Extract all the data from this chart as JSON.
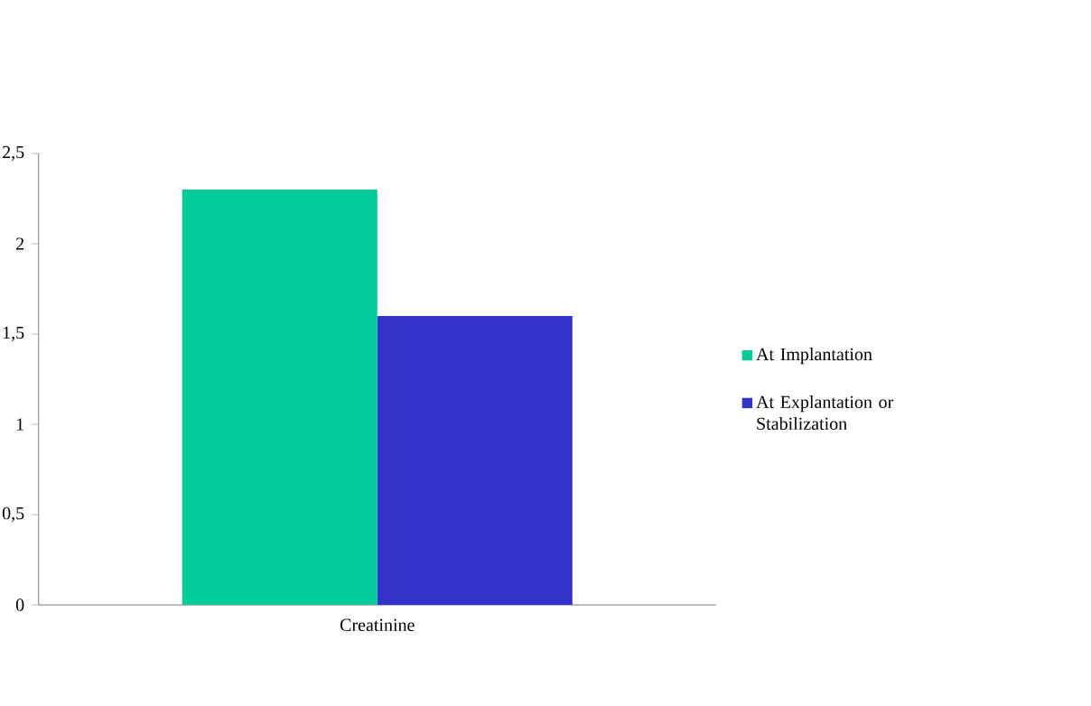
{
  "chart_data": {
    "type": "bar",
    "categories": [
      "Creatinine"
    ],
    "series": [
      {
        "name": "At Implantation",
        "color": "#00cc99",
        "values": [
          2.3
        ]
      },
      {
        "name": "At Explantation or Stabilization",
        "color": "#3333cc",
        "values": [
          1.6
        ]
      }
    ],
    "ylim": [
      0,
      2.5
    ],
    "yticks": [
      0,
      {
        "value": 0.5,
        "label": "0,5"
      },
      1,
      {
        "value": 1.5,
        "label": "1,5"
      },
      2,
      {
        "value": 2.5,
        "label": "2,5"
      }
    ],
    "grid": false,
    "legend": "right"
  }
}
